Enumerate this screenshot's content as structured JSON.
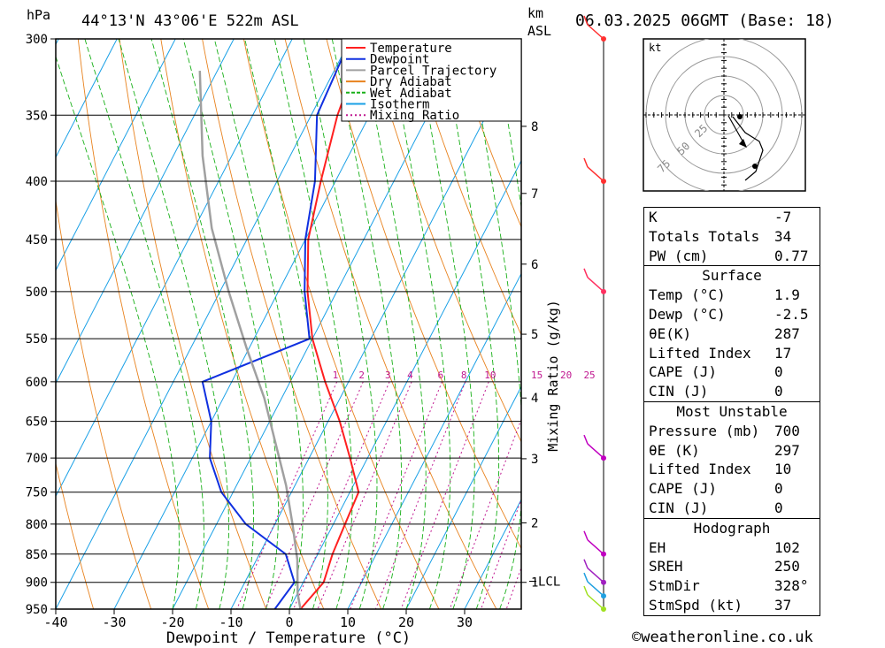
{
  "header": {
    "unit_hpa": "hPa",
    "location": "44°13'N 43°06'E 522m ASL",
    "unit_km": "km",
    "unit_asl": "ASL",
    "datetime": "06.03.2025 06GMT (Base: 18)"
  },
  "chart_data": {
    "type": "line",
    "xlabel": "Dewpoint / Temperature (°C)",
    "ylabel": "hPa",
    "mixing_ratio_label": "Mixing Ratio (g/kg)",
    "x_ticks": [
      -40,
      -30,
      -20,
      -10,
      0,
      10,
      20,
      30
    ],
    "p_ticks": [
      300,
      350,
      400,
      450,
      500,
      550,
      600,
      650,
      700,
      750,
      800,
      850,
      900,
      950
    ],
    "km_ticks": [
      {
        "km": "8",
        "p": 358
      },
      {
        "km": "7",
        "p": 410
      },
      {
        "km": "6",
        "p": 473
      },
      {
        "km": "5",
        "p": 545
      },
      {
        "km": "4",
        "p": 620
      },
      {
        "km": "3",
        "p": 701
      },
      {
        "km": "2",
        "p": 798
      },
      {
        "km": "1",
        "p": 900
      }
    ],
    "lcl": {
      "label": "LCL",
      "p": 898
    },
    "mixing_ratio_values": [
      "1",
      "2",
      "3",
      "4",
      "6",
      "8",
      "10",
      "15",
      "20",
      "25"
    ],
    "legend": [
      "Temperature",
      "Dewpoint",
      "Parcel Trajectory",
      "Dry Adiabat",
      "Wet Adiabat",
      "Isotherm",
      "Mixing Ratio"
    ],
    "series": [
      {
        "name": "Temperature",
        "color": "#ff2020",
        "points": [
          [
            -37.5,
            300
          ],
          [
            -35.5,
            350
          ],
          [
            -32.5,
            400
          ],
          [
            -29.5,
            450
          ],
          [
            -25,
            500
          ],
          [
            -20,
            550
          ],
          [
            -14,
            600
          ],
          [
            -8,
            650
          ],
          [
            -3,
            700
          ],
          [
            1.5,
            750
          ],
          [
            2,
            800
          ],
          [
            2.5,
            850
          ],
          [
            3.5,
            900
          ],
          [
            1.9,
            950
          ]
        ]
      },
      {
        "name": "Dewpoint",
        "color": "#1030e0",
        "points": [
          [
            -40,
            300
          ],
          [
            -39,
            350
          ],
          [
            -33.5,
            400
          ],
          [
            -30,
            450
          ],
          [
            -25.5,
            500
          ],
          [
            -20.5,
            550
          ],
          [
            -35,
            600
          ],
          [
            -30,
            650
          ],
          [
            -27,
            700
          ],
          [
            -22,
            750
          ],
          [
            -15,
            800
          ],
          [
            -5.5,
            850
          ],
          [
            -1.5,
            900
          ],
          [
            -2.5,
            950
          ]
        ]
      },
      {
        "name": "Parcel Trajectory",
        "color": "#a0a0a0",
        "points": [
          [
            -63,
            320
          ],
          [
            -55,
            380
          ],
          [
            -47,
            440
          ],
          [
            -38.5,
            500
          ],
          [
            -30.5,
            560
          ],
          [
            -23,
            620
          ],
          [
            -17,
            680
          ],
          [
            -11.5,
            740
          ],
          [
            -7,
            800
          ],
          [
            -3,
            860
          ],
          [
            0,
            920
          ],
          [
            1.9,
            950
          ]
        ]
      }
    ],
    "wind_barbs": [
      {
        "p": 300,
        "color": "#ff3030"
      },
      {
        "p": 400,
        "color": "#ff3030"
      },
      {
        "p": 500,
        "color": "#ff3060"
      },
      {
        "p": 700,
        "color": "#c000c0"
      },
      {
        "p": 850,
        "color": "#c000c0"
      },
      {
        "p": 900,
        "color": "#a020c0"
      },
      {
        "p": 925,
        "color": "#20a0e0"
      },
      {
        "p": 950,
        "color": "#a0e020"
      }
    ],
    "hodograph": {
      "unit": "kt",
      "rings": [
        "25",
        "50",
        "75"
      ],
      "points": [
        [
          5,
          1
        ],
        [
          12,
          10
        ],
        [
          20,
          15
        ],
        [
          22,
          20
        ],
        [
          18,
          32
        ],
        [
          12,
          37
        ]
      ]
    }
  },
  "stats": {
    "top": [
      {
        "label": "K",
        "value": "-7"
      },
      {
        "label": "Totals Totals",
        "value": "34"
      },
      {
        "label": "PW (cm)",
        "value": "0.77"
      }
    ],
    "surface": {
      "title": "Surface",
      "rows": [
        {
          "label": "Temp (°C)",
          "value": "1.9"
        },
        {
          "label": "Dewp (°C)",
          "value": "-2.5"
        },
        {
          "label": "θE(K)",
          "value": "287"
        },
        {
          "label": "Lifted Index",
          "value": "17"
        },
        {
          "label": "CAPE (J)",
          "value": "0"
        },
        {
          "label": "CIN (J)",
          "value": "0"
        }
      ]
    },
    "most_unstable": {
      "title": "Most Unstable",
      "rows": [
        {
          "label": "Pressure (mb)",
          "value": "700"
        },
        {
          "label": "θE (K)",
          "value": "297"
        },
        {
          "label": "Lifted Index",
          "value": "10"
        },
        {
          "label": "CAPE (J)",
          "value": "0"
        },
        {
          "label": "CIN (J)",
          "value": "0"
        }
      ]
    },
    "hodograph": {
      "title": "Hodograph",
      "rows": [
        {
          "label": "EH",
          "value": "102"
        },
        {
          "label": "SREH",
          "value": "250"
        },
        {
          "label": "StmDir",
          "value": "328°"
        },
        {
          "label": "StmSpd (kt)",
          "value": "37"
        }
      ]
    }
  },
  "credit": "©weatheronline.co.uk"
}
